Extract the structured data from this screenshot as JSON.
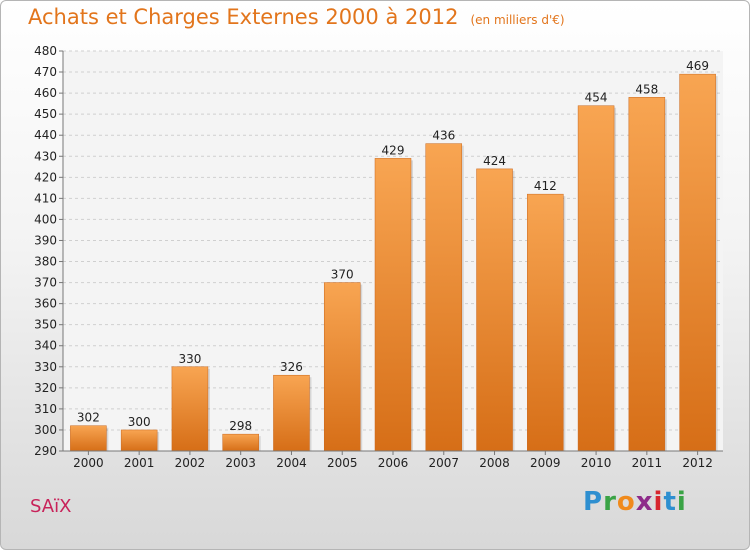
{
  "header": {
    "title": "Achats et Charges Externes 2000 à 2012",
    "unit": "(en milliers d'€)"
  },
  "footer": {
    "town": "SAïX",
    "logo": "Proxiti"
  },
  "colors": {
    "bar_top": "#f8a552",
    "bar_bottom": "#d66e17",
    "title": "#e2751c",
    "town": "#c8235a"
  },
  "chart_data": {
    "type": "bar",
    "title": "Achats et Charges Externes 2000 à 2012",
    "subtitle": "(en milliers d'€)",
    "xlabel": "",
    "ylabel": "",
    "categories": [
      "2000",
      "2001",
      "2002",
      "2003",
      "2004",
      "2005",
      "2006",
      "2007",
      "2008",
      "2009",
      "2010",
      "2011",
      "2012"
    ],
    "values": [
      302,
      300,
      330,
      298,
      326,
      370,
      429,
      436,
      424,
      412,
      454,
      458,
      469
    ],
    "ylim": [
      290,
      480
    ],
    "yticks": [
      290,
      300,
      310,
      320,
      330,
      340,
      350,
      360,
      370,
      380,
      390,
      400,
      410,
      420,
      430,
      440,
      450,
      460,
      470,
      480
    ],
    "grid": true,
    "legend": "none"
  }
}
